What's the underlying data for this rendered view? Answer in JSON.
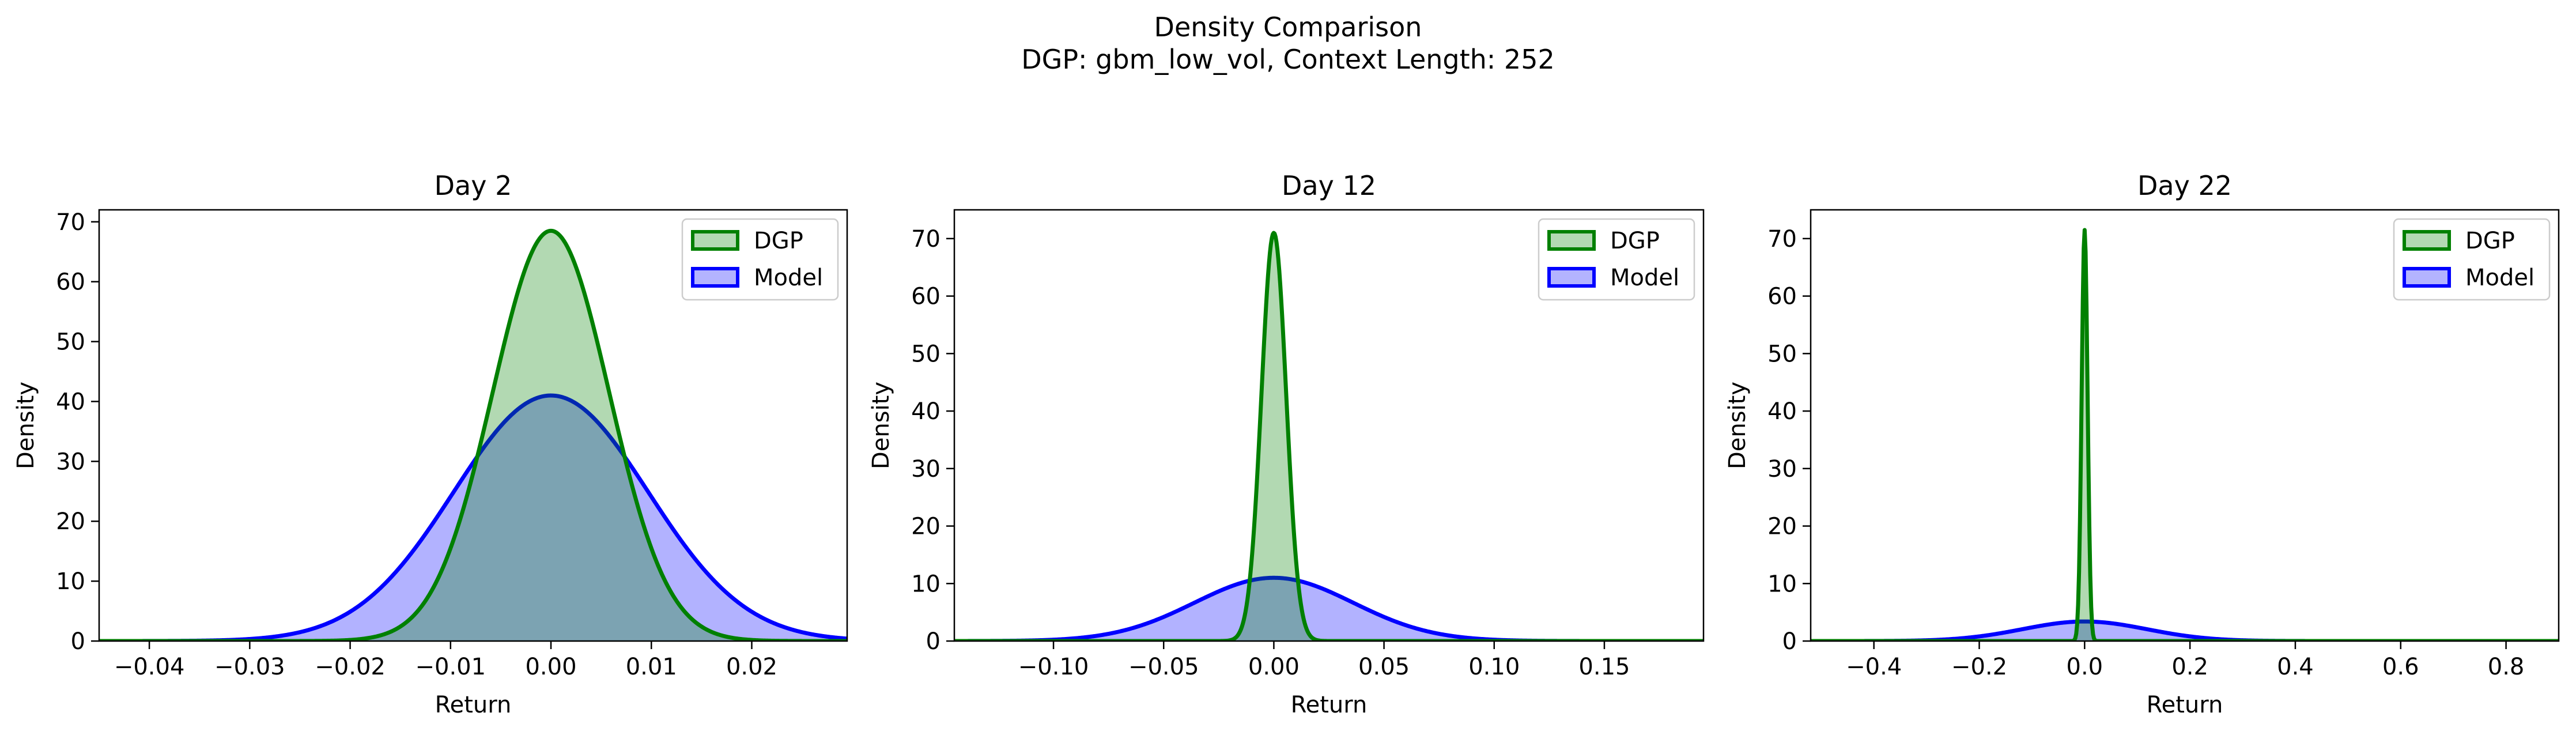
{
  "figure": {
    "title_line1": "Density Comparison",
    "title_line2": "DGP: gbm_low_vol, Context Length: 252"
  },
  "colors": {
    "dgp_line": "#008000",
    "dgp_fill": "#b3d9b3",
    "model_line": "#0000ff",
    "model_fill": "#b3b3ff",
    "overlap_fill": "#7f99cc"
  },
  "chart_data": [
    {
      "type": "area",
      "title": "Day 2",
      "xlabel": "Return",
      "ylabel": "Density",
      "xlim": [
        -0.045,
        0.0295
      ],
      "ylim": [
        0,
        72
      ],
      "xticks": [
        -0.04,
        -0.03,
        -0.02,
        -0.01,
        0.0,
        0.01,
        0.02
      ],
      "xtick_labels": [
        "−0.04",
        "−0.03",
        "−0.02",
        "−0.01",
        "0.00",
        "0.01",
        "0.02"
      ],
      "yticks": [
        0,
        10,
        20,
        30,
        40,
        50,
        60,
        70
      ],
      "ytick_labels": [
        "0",
        "10",
        "20",
        "30",
        "40",
        "50",
        "60",
        "70"
      ],
      "legend": "top-right",
      "series": [
        {
          "name": "DGP",
          "distribution": "normal",
          "mean": 0.0,
          "std": 0.0058,
          "peak_density": 68.5
        },
        {
          "name": "Model",
          "distribution": "normal",
          "mean": 0.0,
          "std": 0.0097,
          "peak_density": 41.0
        }
      ]
    },
    {
      "type": "area",
      "title": "Day 12",
      "xlabel": "Return",
      "ylabel": "Density",
      "xlim": [
        -0.145,
        0.195
      ],
      "ylim": [
        0,
        75
      ],
      "xticks": [
        -0.1,
        -0.05,
        0.0,
        0.05,
        0.1,
        0.15
      ],
      "xtick_labels": [
        "−0.10",
        "−0.05",
        "0.00",
        "0.05",
        "0.10",
        "0.15"
      ],
      "yticks": [
        0,
        10,
        20,
        30,
        40,
        50,
        60,
        70
      ],
      "ytick_labels": [
        "0",
        "10",
        "20",
        "30",
        "40",
        "50",
        "60",
        "70"
      ],
      "legend": "top-right",
      "series": [
        {
          "name": "DGP",
          "distribution": "normal",
          "mean": 0.0,
          "std": 0.0056,
          "peak_density": 71.0
        },
        {
          "name": "Model",
          "distribution": "normal",
          "mean": 0.0,
          "std": 0.036,
          "peak_density": 11.0
        }
      ]
    },
    {
      "type": "area",
      "title": "Day 22",
      "xlabel": "Return",
      "ylabel": "Density",
      "xlim": [
        -0.52,
        0.9
      ],
      "ylim": [
        0,
        75
      ],
      "xticks": [
        -0.4,
        -0.2,
        0.0,
        0.2,
        0.4,
        0.6,
        0.8
      ],
      "xtick_labels": [
        "−0.4",
        "−0.2",
        "0.0",
        "0.2",
        "0.4",
        "0.6",
        "0.8"
      ],
      "yticks": [
        0,
        10,
        20,
        30,
        40,
        50,
        60,
        70
      ],
      "ytick_labels": [
        "0",
        "10",
        "20",
        "30",
        "40",
        "50",
        "60",
        "70"
      ],
      "legend": "top-right",
      "series": [
        {
          "name": "DGP",
          "distribution": "normal",
          "mean": 0.0,
          "std": 0.0056,
          "peak_density": 71.5
        },
        {
          "name": "Model",
          "distribution": "normal",
          "mean": 0.0,
          "std": 0.118,
          "peak_density": 3.4
        }
      ]
    }
  ]
}
